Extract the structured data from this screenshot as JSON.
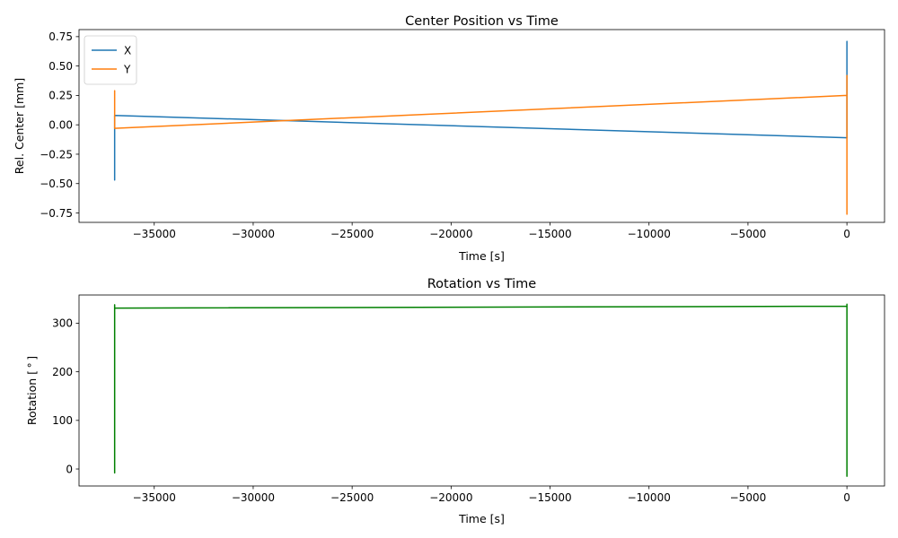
{
  "chart_data": [
    {
      "type": "line",
      "title": "Center Position vs Time",
      "xlabel": "Time [s]",
      "ylabel": "Rel. Center [mm]",
      "xlim": [
        -38800,
        1900
      ],
      "ylim": [
        -0.83,
        0.81
      ],
      "xticks": [
        -35000,
        -30000,
        -25000,
        -20000,
        -15000,
        -10000,
        -5000,
        0
      ],
      "xtick_labels": [
        "−35000",
        "−30000",
        "−25000",
        "−20000",
        "−15000",
        "−10000",
        "−5000",
        "0"
      ],
      "yticks": [
        0.75,
        0.5,
        0.25,
        0.0,
        -0.25,
        -0.5,
        -0.75
      ],
      "ytick_labels": [
        "0.75",
        "0.50",
        "0.25",
        "0.00",
        "−0.25",
        "−0.50",
        "−0.75"
      ],
      "grid": false,
      "legend": "upper left",
      "series": [
        {
          "name": "X",
          "color": "#1f77b4",
          "x": [
            -37000,
            -37000,
            -37000,
            -37000,
            -37000,
            -37000,
            -37000,
            -37000,
            -37000,
            -37000,
            -37000,
            0,
            0,
            0,
            0,
            0,
            0,
            0,
            0,
            0
          ],
          "y": [
            -0.05,
            -0.47,
            0.0,
            -0.4,
            -0.08,
            -0.46,
            -0.03,
            -0.3,
            -0.1,
            -0.2,
            0.08,
            -0.11,
            -0.11,
            0.71,
            0.3,
            0.45,
            -0.1,
            0.2,
            -0.05,
            0.0
          ]
        },
        {
          "name": "Y",
          "color": "#ff7f0e",
          "x": [
            -37000,
            -37000,
            -37000,
            -37000,
            -37000,
            -37000,
            -37000,
            -37000,
            -37000,
            -37000,
            -37000,
            0,
            0,
            0,
            0,
            0,
            0,
            0,
            0,
            0,
            0
          ],
          "y": [
            0.1,
            0.29,
            0.05,
            0.27,
            0.0,
            0.24,
            0.05,
            0.2,
            -0.02,
            0.15,
            -0.03,
            0.25,
            0.25,
            -0.76,
            0.42,
            -0.4,
            0.3,
            -0.2,
            0.1,
            -0.42,
            0.0
          ]
        }
      ]
    },
    {
      "type": "line",
      "title": "Rotation vs Time",
      "xlabel": "Time [s]",
      "ylabel": "Rotation [$^\\circ$]",
      "xlim": [
        -38800,
        1900
      ],
      "ylim": [
        -35,
        358
      ],
      "xticks": [
        -35000,
        -30000,
        -25000,
        -20000,
        -15000,
        -10000,
        -5000,
        0
      ],
      "xtick_labels": [
        "−35000",
        "−30000",
        "−25000",
        "−20000",
        "−15000",
        "−10000",
        "−5000",
        "0"
      ],
      "yticks": [
        300,
        200,
        100,
        0
      ],
      "ytick_labels": [
        "300",
        "200",
        "100",
        "0"
      ],
      "grid": false,
      "series": [
        {
          "color": "#008000",
          "x": [
            -37000,
            -37000,
            -37000,
            -37000,
            -37000,
            0,
            0,
            0,
            0,
            0,
            0
          ],
          "y": [
            330,
            -8,
            338,
            5,
            331,
            335,
            335,
            -15,
            339,
            75,
            0
          ]
        }
      ]
    }
  ]
}
